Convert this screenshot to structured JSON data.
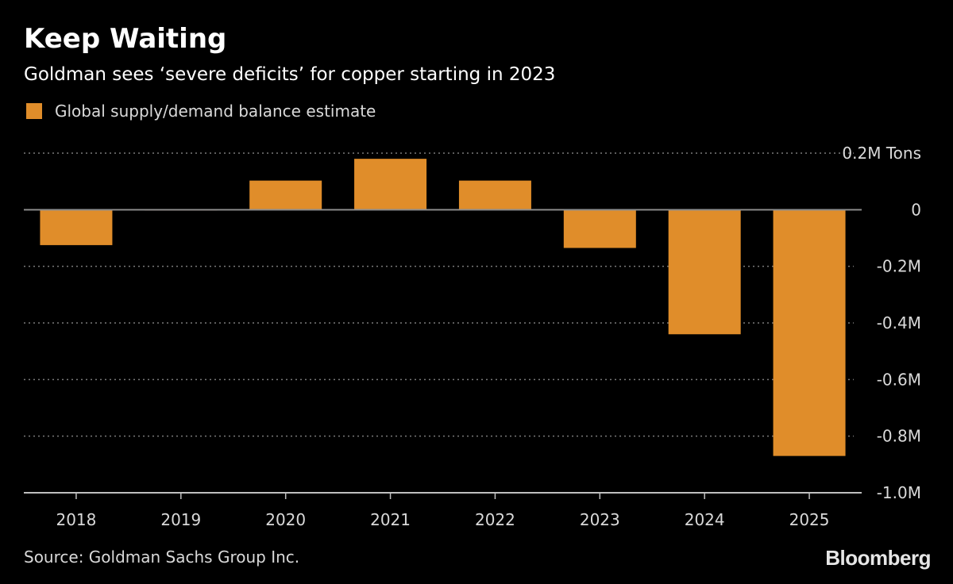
{
  "header": {
    "title": "Keep Waiting",
    "subtitle": "Goldman sees ‘severe deficits’ for copper starting in 2023"
  },
  "legend": {
    "label": "Global supply/demand balance estimate"
  },
  "footer": {
    "source": "Source: Goldman Sachs Group Inc.",
    "brand": "Bloomberg"
  },
  "colors": {
    "background": "#000000",
    "bar": "#e08d2a",
    "grid": "#7a7a7a",
    "zero_line": "#8c8c8c",
    "text": "#d9d9d9"
  },
  "chart_data": {
    "type": "bar",
    "categories": [
      "2018",
      "2019",
      "2020",
      "2021",
      "2022",
      "2023",
      "2024",
      "2025"
    ],
    "series": [
      {
        "name": "Global supply/demand balance estimate",
        "values": [
          -0.125,
          0.002,
          0.103,
          0.18,
          0.103,
          -0.135,
          -0.44,
          -0.87
        ]
      }
    ],
    "ylim": [
      -1.0,
      0.2
    ],
    "yticks": [
      {
        "value": 0.2,
        "label": "0.2M Tons"
      },
      {
        "value": 0,
        "label": "0"
      },
      {
        "value": -0.2,
        "label": "-0.2M"
      },
      {
        "value": -0.4,
        "label": "-0.4M"
      },
      {
        "value": -0.6,
        "label": "-0.6M"
      },
      {
        "value": -0.8,
        "label": "-0.8M"
      },
      {
        "value": -1.0,
        "label": "-1.0M"
      }
    ],
    "grid": true,
    "legend_position": "top-left"
  }
}
